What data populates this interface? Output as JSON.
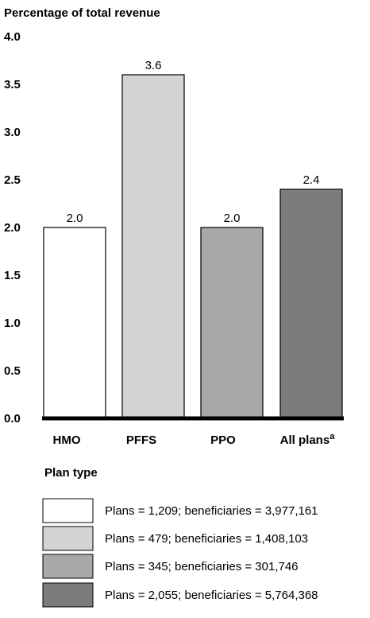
{
  "chart_data": {
    "type": "bar",
    "ylabel": "Percentage of total revenue",
    "xlabel": "Plan type",
    "ylim": [
      0,
      4.0
    ],
    "yticks": [
      "0.0",
      "0.5",
      "1.0",
      "1.5",
      "2.0",
      "2.5",
      "3.0",
      "3.5",
      "4.0"
    ],
    "categories": [
      {
        "label": "HMO",
        "sup": ""
      },
      {
        "label": "PFFS",
        "sup": ""
      },
      {
        "label": "PPO",
        "sup": ""
      },
      {
        "label": "All plans",
        "sup": "a"
      }
    ],
    "values": [
      2.0,
      3.6,
      2.0,
      2.4
    ],
    "value_labels": [
      "2.0",
      "3.6",
      "2.0",
      "2.4"
    ],
    "colors": [
      "#ffffff",
      "#d4d4d4",
      "#a8a8a8",
      "#7c7c7c"
    ],
    "legend": [
      {
        "text": "Plans = 1,209; beneficiaries = 3,977,161",
        "color": "#ffffff"
      },
      {
        "text": "Plans = 479; beneficiaries = 1,408,103",
        "color": "#d4d4d4"
      },
      {
        "text": "Plans = 345; beneficiaries = 301,746",
        "color": "#a8a8a8"
      },
      {
        "text": "Plans = 2,055; beneficiaries = 5,764,368",
        "color": "#7c7c7c"
      }
    ],
    "legend_placement": "bottom",
    "grid": false
  }
}
